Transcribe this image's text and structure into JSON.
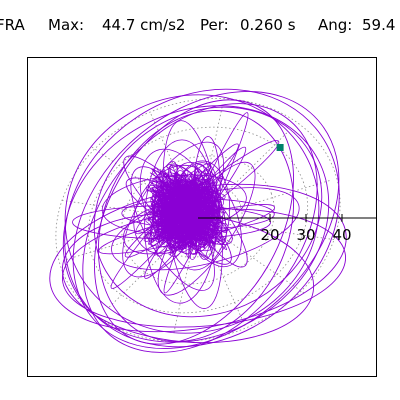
{
  "header": {
    "station": "FRA",
    "max_label": "Max:",
    "max_value": "44.7 cm/s2",
    "per_label": "Per:",
    "per_value": "0.260 s",
    "ang_label": "Ang:",
    "ang_value": "59.4"
  },
  "chart_data": {
    "type": "line",
    "title": "",
    "xlabel": "",
    "ylabel": "",
    "axis_ticks": [
      "20",
      "30",
      "40"
    ],
    "tick_values": [
      20,
      30,
      40
    ],
    "max_point": {
      "x": 22.8,
      "y": 38.4
    },
    "grid": "dotted polar rings and radial spokes",
    "colors": {
      "trace": "#8a00d4",
      "marker": "#00806a",
      "grid": "#8c8c8c",
      "axis": "#000000"
    }
  }
}
